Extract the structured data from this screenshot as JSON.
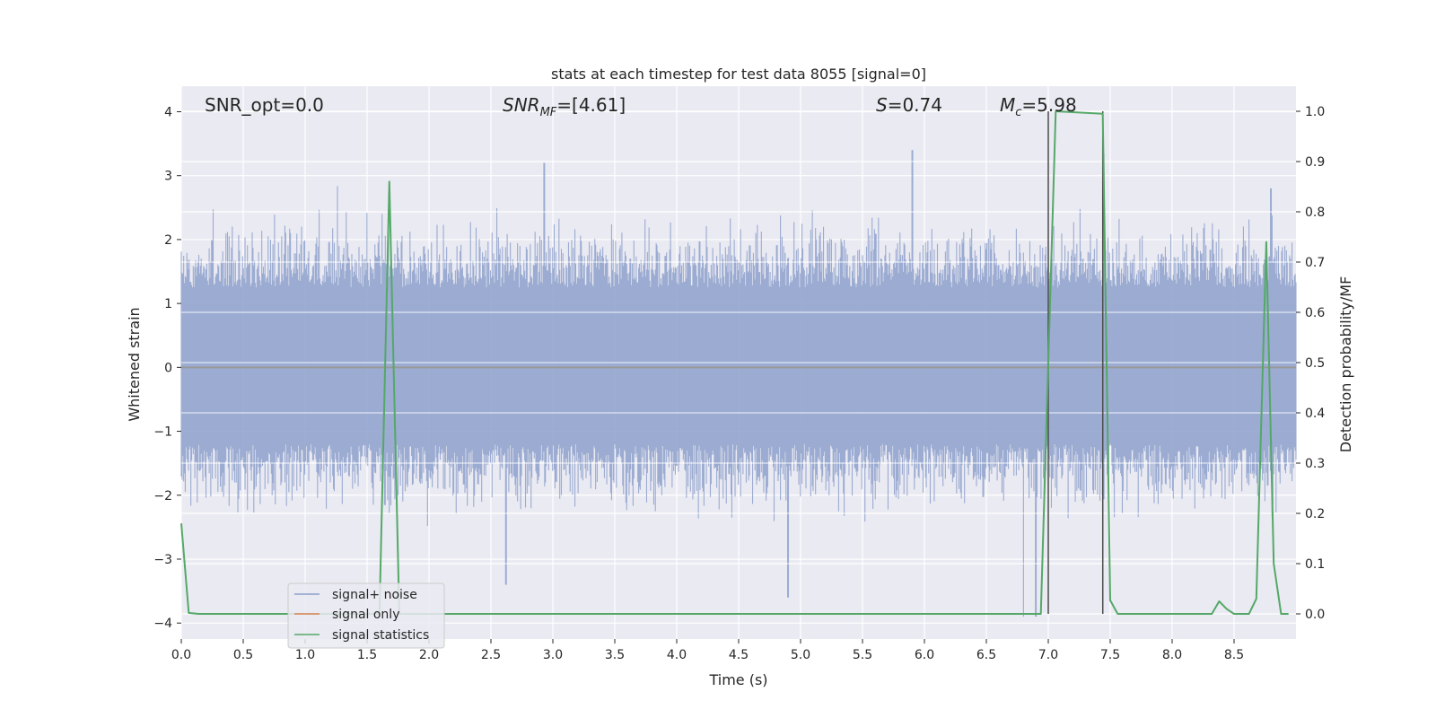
{
  "chart_data": {
    "type": "line",
    "title": "stats at each timestep for test data 8055 [signal=0]",
    "xlabel": "Time (s)",
    "ylabel": "Whitened strain",
    "ylabel_right": "Detection probability/MF",
    "xlim": [
      0.0,
      9.0
    ],
    "ylim": [
      -4.25,
      4.4
    ],
    "ylim_right": [
      -0.05,
      1.05
    ],
    "x_ticks": [
      "0.0",
      "0.5",
      "1.0",
      "1.5",
      "2.0",
      "2.5",
      "3.0",
      "3.5",
      "4.0",
      "4.5",
      "5.0",
      "5.5",
      "6.0",
      "6.5",
      "7.0",
      "7.5",
      "8.0",
      "8.5"
    ],
    "y_ticks": [
      "4",
      "3",
      "2",
      "1",
      "0",
      "−1",
      "−2",
      "−3",
      "−4"
    ],
    "y_ticks_right": [
      "1.0",
      "0.9",
      "0.8",
      "0.7",
      "0.6",
      "0.5",
      "0.4",
      "0.3",
      "0.2",
      "0.1",
      "0.0"
    ],
    "grid": true,
    "legend_position": "lower-left",
    "annotations": {
      "snr_opt": "SNR_opt=0.0",
      "snr_mf_main": "SNR",
      "snr_mf_sub": "MF",
      "snr_mf_value": "=[4.61]",
      "s_label": "S",
      "s_value": "=0.74",
      "mc_label": "M",
      "mc_sub": "c",
      "mc_value": "=5.98"
    },
    "vertical_markers": [
      7.0,
      7.44
    ],
    "series": [
      {
        "name": "signal+ noise",
        "axis": "left",
        "color": "#8da0cb",
        "description_range": [
          -3.9,
          3.4
        ],
        "highlight_peaks": [
          [
            2.93,
            3.2
          ],
          [
            5.9,
            3.4
          ],
          [
            7.45,
            3.35
          ],
          [
            8.8,
            2.8
          ]
        ],
        "highlight_troughs": [
          [
            2.62,
            -3.4
          ],
          [
            4.9,
            -3.6
          ],
          [
            6.8,
            -3.9
          ],
          [
            6.9,
            -3.9
          ]
        ]
      },
      {
        "name": "signal only",
        "axis": "left",
        "color": "#dd8452",
        "x": [
          0.0,
          9.0
        ],
        "y": [
          0.0,
          0.0
        ]
      },
      {
        "name": "signal statistics",
        "axis": "right",
        "color": "#55a868",
        "x": [
          0.0,
          0.06,
          0.14,
          1.6,
          1.68,
          1.76,
          1.84,
          6.94,
          7.06,
          7.44,
          7.5,
          7.56,
          8.32,
          8.38,
          8.44,
          8.5,
          8.62,
          8.68,
          8.76,
          8.82,
          8.88,
          8.94
        ],
        "y": [
          0.18,
          0.002,
          0.0,
          0.0,
          0.86,
          0.0,
          0.0,
          0.0,
          1.0,
          0.995,
          0.027,
          0.0,
          0.0,
          0.025,
          0.01,
          0.0,
          0.0,
          0.03,
          0.74,
          0.1,
          0.0,
          0.0
        ]
      }
    ]
  },
  "colors": {
    "axes_bg": "#eaeaf2",
    "grid": "#ffffff",
    "noise": "#8da0cb",
    "signal_only": "#dd8452",
    "stats": "#55a868",
    "marker": "#4c4c4c"
  }
}
